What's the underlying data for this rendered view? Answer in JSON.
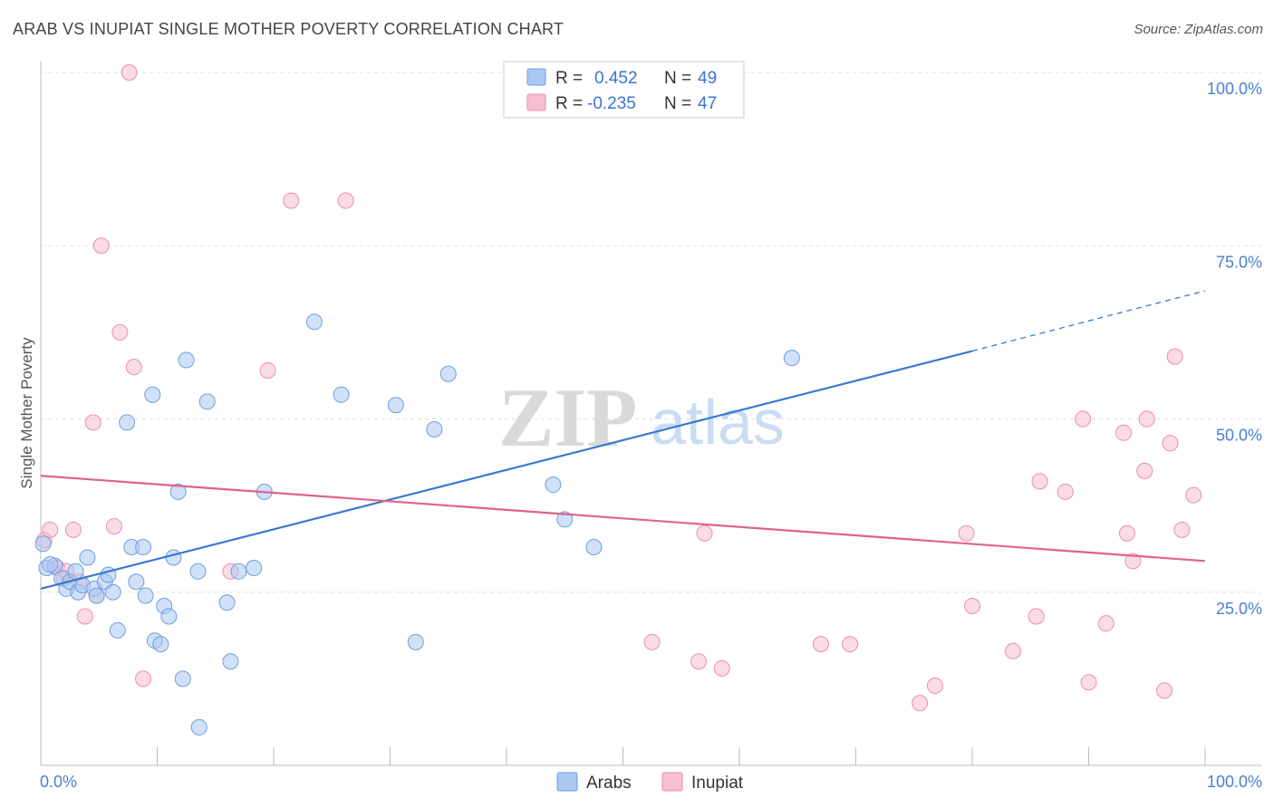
{
  "title": "ARAB VS INUPIAT SINGLE MOTHER POVERTY CORRELATION CHART",
  "source": "Source: ZipAtlas.com",
  "watermark": {
    "zip": "ZIP",
    "atlas": "atlas"
  },
  "legend_top": {
    "rows": [
      {
        "r_label": "R =",
        "r_value": "0.452",
        "n_label": "N =",
        "n_value": "49",
        "color": "#a9c8f2"
      },
      {
        "r_label": "R =",
        "r_value": "-0.235",
        "n_label": "N =",
        "n_value": "47",
        "color": "#f7bfcf"
      }
    ]
  },
  "chart_data": {
    "type": "scatter",
    "title": "ARAB VS INUPIAT SINGLE MOTHER POVERTY CORRELATION CHART",
    "xlabel": "",
    "ylabel": "Single Mother Poverty",
    "xlim": [
      0,
      100
    ],
    "ylim": [
      0,
      100
    ],
    "x_tick_labels": [
      "0.0%",
      "100.0%"
    ],
    "y_tick_values": [
      25,
      50,
      75,
      100
    ],
    "y_tick_labels": [
      "25.0%",
      "50.0%",
      "75.0%",
      "100.0%"
    ],
    "grid": true,
    "legend_position": "bottom-center",
    "series": [
      {
        "name": "Arabs",
        "color": "#a9c8f2",
        "stroke": "#6f9fdc",
        "line_color": "#3a78d0",
        "trend": {
          "x0": 0,
          "y0": 25.5,
          "x1": 80,
          "y1": 59.8,
          "dash_to_x": 100,
          "dash_to_y": 68.5
        },
        "points": [
          [
            0.5,
            28.5
          ],
          [
            1.2,
            28.8
          ],
          [
            1.8,
            27.0
          ],
          [
            2.2,
            25.5
          ],
          [
            2.5,
            26.5
          ],
          [
            3.0,
            28.0
          ],
          [
            3.2,
            25.0
          ],
          [
            3.6,
            26.0
          ],
          [
            4.0,
            30.0
          ],
          [
            4.6,
            25.5
          ],
          [
            4.8,
            24.5
          ],
          [
            5.5,
            26.5
          ],
          [
            5.8,
            27.5
          ],
          [
            6.2,
            25.0
          ],
          [
            6.6,
            19.5
          ],
          [
            7.4,
            49.5
          ],
          [
            7.8,
            31.5
          ],
          [
            8.2,
            26.5
          ],
          [
            8.8,
            31.5
          ],
          [
            9.0,
            24.5
          ],
          [
            9.6,
            53.5
          ],
          [
            9.8,
            18.0
          ],
          [
            10.3,
            17.5
          ],
          [
            10.6,
            23.0
          ],
          [
            11.0,
            21.5
          ],
          [
            11.4,
            30.0
          ],
          [
            11.8,
            39.5
          ],
          [
            12.2,
            12.5
          ],
          [
            12.5,
            58.5
          ],
          [
            13.5,
            28.0
          ],
          [
            13.6,
            5.5
          ],
          [
            14.3,
            52.5
          ],
          [
            16.0,
            23.5
          ],
          [
            16.3,
            15.0
          ],
          [
            17.0,
            28.0
          ],
          [
            18.3,
            28.5
          ],
          [
            19.2,
            39.5
          ],
          [
            23.5,
            64.0
          ],
          [
            25.8,
            53.5
          ],
          [
            30.5,
            52.0
          ],
          [
            32.2,
            17.8
          ],
          [
            33.8,
            48.5
          ],
          [
            35.0,
            56.5
          ],
          [
            44.0,
            40.5
          ],
          [
            45.0,
            35.5
          ],
          [
            47.5,
            31.5
          ],
          [
            64.5,
            58.8
          ],
          [
            0.2,
            32.0
          ],
          [
            0.8,
            29.0
          ]
        ]
      },
      {
        "name": "Inupiat",
        "color": "#f7bfcf",
        "stroke": "#e890aa",
        "line_color": "#e0628d",
        "trend": {
          "x0": 0,
          "y0": 41.8,
          "x1": 100,
          "y1": 29.5
        },
        "points": [
          [
            0.3,
            32.5
          ],
          [
            0.8,
            34.0
          ],
          [
            1.4,
            28.5
          ],
          [
            2.0,
            27.0
          ],
          [
            2.8,
            34.0
          ],
          [
            3.3,
            26.5
          ],
          [
            3.8,
            21.5
          ],
          [
            4.5,
            49.5
          ],
          [
            4.8,
            24.5
          ],
          [
            5.2,
            75.0
          ],
          [
            6.3,
            34.5
          ],
          [
            6.8,
            62.5
          ],
          [
            7.6,
            100.0
          ],
          [
            8.0,
            57.5
          ],
          [
            8.8,
            12.5
          ],
          [
            16.3,
            28.0
          ],
          [
            19.5,
            57.0
          ],
          [
            21.5,
            81.5
          ],
          [
            26.2,
            81.5
          ],
          [
            52.5,
            17.8
          ],
          [
            56.5,
            15.0
          ],
          [
            57.0,
            33.5
          ],
          [
            58.5,
            14.0
          ],
          [
            67.0,
            17.5
          ],
          [
            69.5,
            17.5
          ],
          [
            75.5,
            9.0
          ],
          [
            76.8,
            11.5
          ],
          [
            79.5,
            33.5
          ],
          [
            80.0,
            23.0
          ],
          [
            83.5,
            16.5
          ],
          [
            85.5,
            21.5
          ],
          [
            85.8,
            41.0
          ],
          [
            88.0,
            39.5
          ],
          [
            89.5,
            50.0
          ],
          [
            90.0,
            12.0
          ],
          [
            91.5,
            20.5
          ],
          [
            93.0,
            48.0
          ],
          [
            93.3,
            33.5
          ],
          [
            93.8,
            29.5
          ],
          [
            94.8,
            42.5
          ],
          [
            95.0,
            50.0
          ],
          [
            96.5,
            10.8
          ],
          [
            97.0,
            46.5
          ],
          [
            97.4,
            59.0
          ],
          [
            98.0,
            34.0
          ],
          [
            99.0,
            39.0
          ],
          [
            2.2,
            28.0
          ]
        ]
      }
    ]
  },
  "legend_bottom": [
    {
      "label": "Arabs",
      "color": "#a9c8f2",
      "stroke": "#6f9fdc"
    },
    {
      "label": "Inupiat",
      "color": "#f7bfcf",
      "stroke": "#e890aa"
    }
  ]
}
